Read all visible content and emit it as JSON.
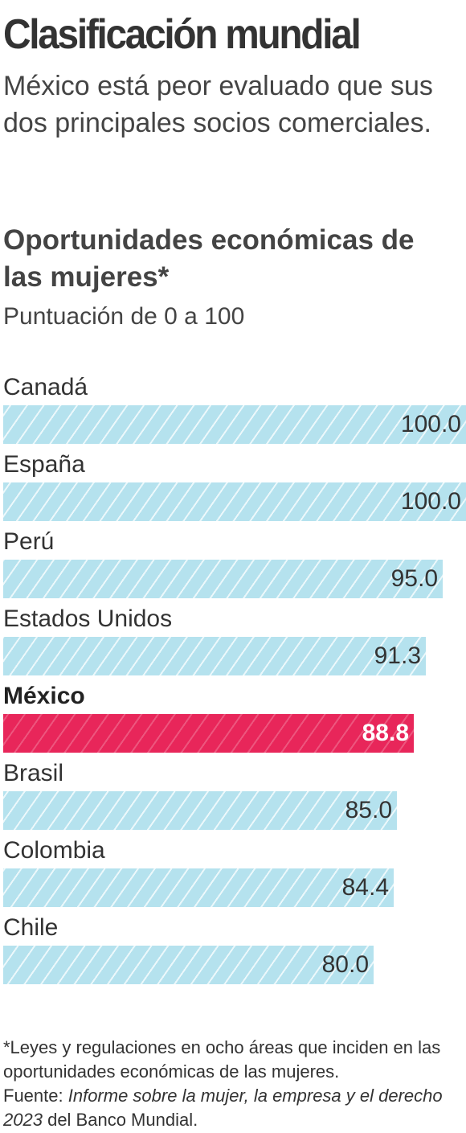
{
  "header": {
    "title": "Clasificación mundial",
    "subtitle": "México está peor evaluado que sus dos principales socios comerciales."
  },
  "chart_data": {
    "type": "bar",
    "orientation": "horizontal",
    "title": "Oportunidades económicas de las mujeres*",
    "subtitle": "Puntuación de 0 a 100",
    "xlim": [
      0,
      100
    ],
    "grid": false,
    "legend": "none",
    "categories": [
      "Canadá",
      "España",
      "Perú",
      "Estados Unidos",
      "México",
      "Brasil",
      "Colombia",
      "Chile"
    ],
    "values": [
      100.0,
      100.0,
      95.0,
      91.3,
      88.8,
      85.0,
      84.4,
      80.0
    ],
    "value_labels": [
      "100.0",
      "100.0",
      "95.0",
      "91.3",
      "88.8",
      "85.0",
      "84.4",
      "80.0"
    ],
    "highlight": "México",
    "colors": {
      "bar": "#b5e2ee",
      "highlight": "#e8265a"
    }
  },
  "footer": {
    "note": "*Leyes y regulaciones en ocho áreas que inciden en las oportunidades económicas de las mujeres.",
    "source_label": "Fuente:",
    "source_title": "Informe sobre la mujer, la empresa y el derecho 2023",
    "source_org": "del Banco Mundial."
  }
}
